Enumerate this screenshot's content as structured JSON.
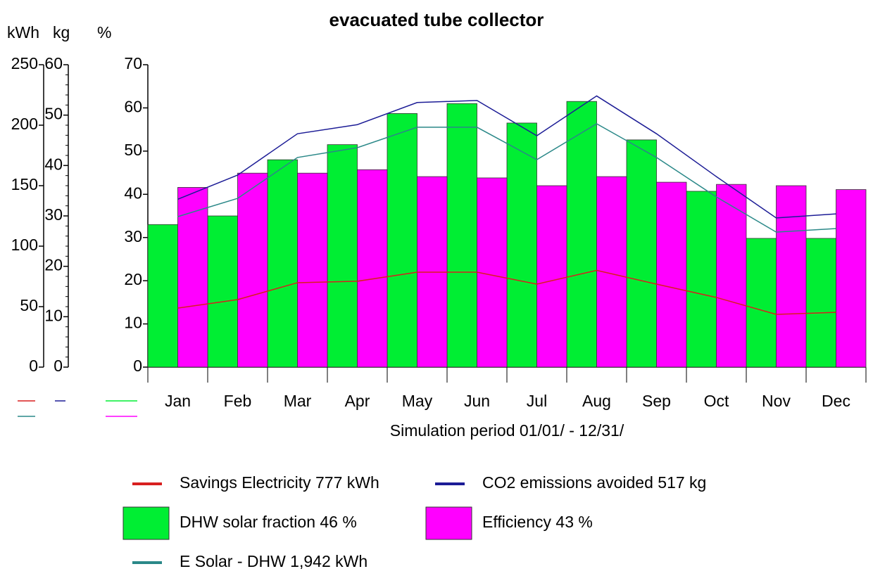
{
  "chart_data": {
    "type": "bar",
    "title": "evacuated tube collector",
    "xlabel": "Simulation period 01/01/ - 12/31/",
    "ylabel": "%",
    "y2label": "kWh",
    "y3label": "kg",
    "categories": [
      "Jan",
      "Feb",
      "Mar",
      "Apr",
      "May",
      "Jun",
      "Jul",
      "Aug",
      "Sep",
      "Oct",
      "Nov",
      "Dec"
    ],
    "ylim": [
      0,
      70
    ],
    "yticks": [
      0,
      10,
      20,
      30,
      40,
      50,
      60,
      70
    ],
    "y2lim": [
      0,
      250
    ],
    "y2ticks": [
      0,
      50,
      100,
      150,
      200,
      250
    ],
    "y3lim": [
      0,
      60
    ],
    "y3ticks": [
      0,
      10,
      20,
      30,
      40,
      50,
      60
    ],
    "series": [
      {
        "name": "Savings  Electricity  777  kWh",
        "type": "line",
        "axis": "y2",
        "color": "#d81f1f",
        "values": [
          48.8,
          55.8,
          69.8,
          71,
          78.5,
          78.5,
          68.6,
          80,
          68.6,
          57.6,
          43.6,
          45.3
        ]
      },
      {
        "name": "CO2 emissions avoided  517  kg",
        "type": "line",
        "axis": "y3",
        "color": "#1c1c96",
        "values": [
          33.3,
          38.1,
          46.3,
          48.1,
          52.5,
          52.9,
          45.9,
          53.8,
          46.3,
          37.8,
          29.6,
          30.4
        ]
      },
      {
        "name": "DHW solar fraction  46  %",
        "type": "bar",
        "axis": "y",
        "color": "#00ee33",
        "values": [
          33,
          35,
          48,
          51.5,
          58.7,
          61,
          56.5,
          61.5,
          52.6,
          40.7,
          29.8,
          29.8
        ]
      },
      {
        "name": "Efficiency  43  %",
        "type": "bar",
        "axis": "y",
        "color": "#ff00ff",
        "values": [
          41.6,
          44.9,
          44.9,
          45.7,
          44.1,
          43.8,
          42,
          44.1,
          42.8,
          42.3,
          42,
          41.1
        ]
      },
      {
        "name": "E Solar - DHW  1,942  kWh",
        "type": "line",
        "axis": "y2",
        "color": "#2a8888",
        "values": [
          124.4,
          139.5,
          173.3,
          181.4,
          198.3,
          198.3,
          171.5,
          201.2,
          173.3,
          140.7,
          111.6,
          114.5
        ]
      }
    ]
  }
}
